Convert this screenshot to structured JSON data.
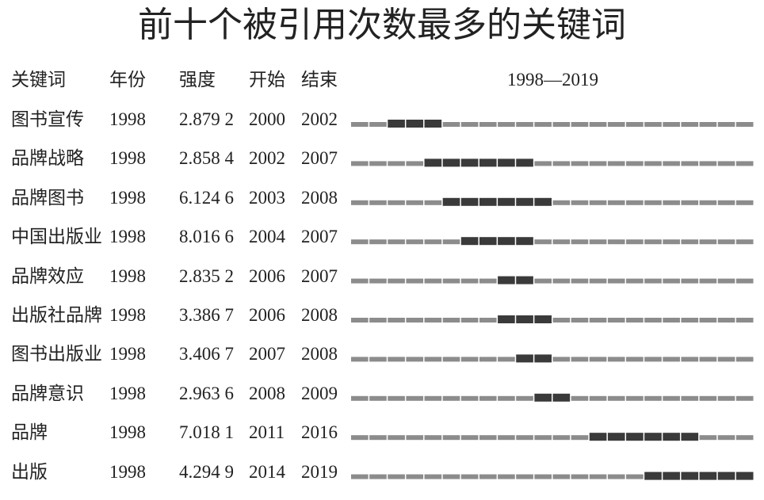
{
  "title": "前十个被引用次数最多的关键词",
  "table": {
    "header": [
      "关键词",
      "年份",
      "强度",
      "开始",
      "结束",
      "1998—2019"
    ],
    "rows": [
      [
        "图书宣传",
        "1998",
        "2.879 2",
        "2000",
        "2002"
      ],
      [
        "品牌战略",
        "1998",
        "2.858 4",
        "2002",
        "2007"
      ],
      [
        "品牌图书",
        "1998",
        "6.124 6",
        "2003",
        "2008"
      ],
      [
        "中国出版业",
        "1998",
        "8.016 6",
        "2004",
        "2007"
      ],
      [
        "品牌效应",
        "1998",
        "2.835 2",
        "2006",
        "2007"
      ],
      [
        "出版社品牌",
        "1998",
        "3.386 7",
        "2006",
        "2008"
      ],
      [
        "图书出版业",
        "1998",
        "3.406 7",
        "2007",
        "2008"
      ],
      [
        "品牌意识",
        "1998",
        "2.963 6",
        "2008",
        "2009"
      ],
      [
        "品牌",
        "1998",
        "7.018 1",
        "2011",
        "2016"
      ],
      [
        "出版",
        "1998",
        "4.294 9",
        "2014",
        "2019"
      ]
    ]
  }
}
